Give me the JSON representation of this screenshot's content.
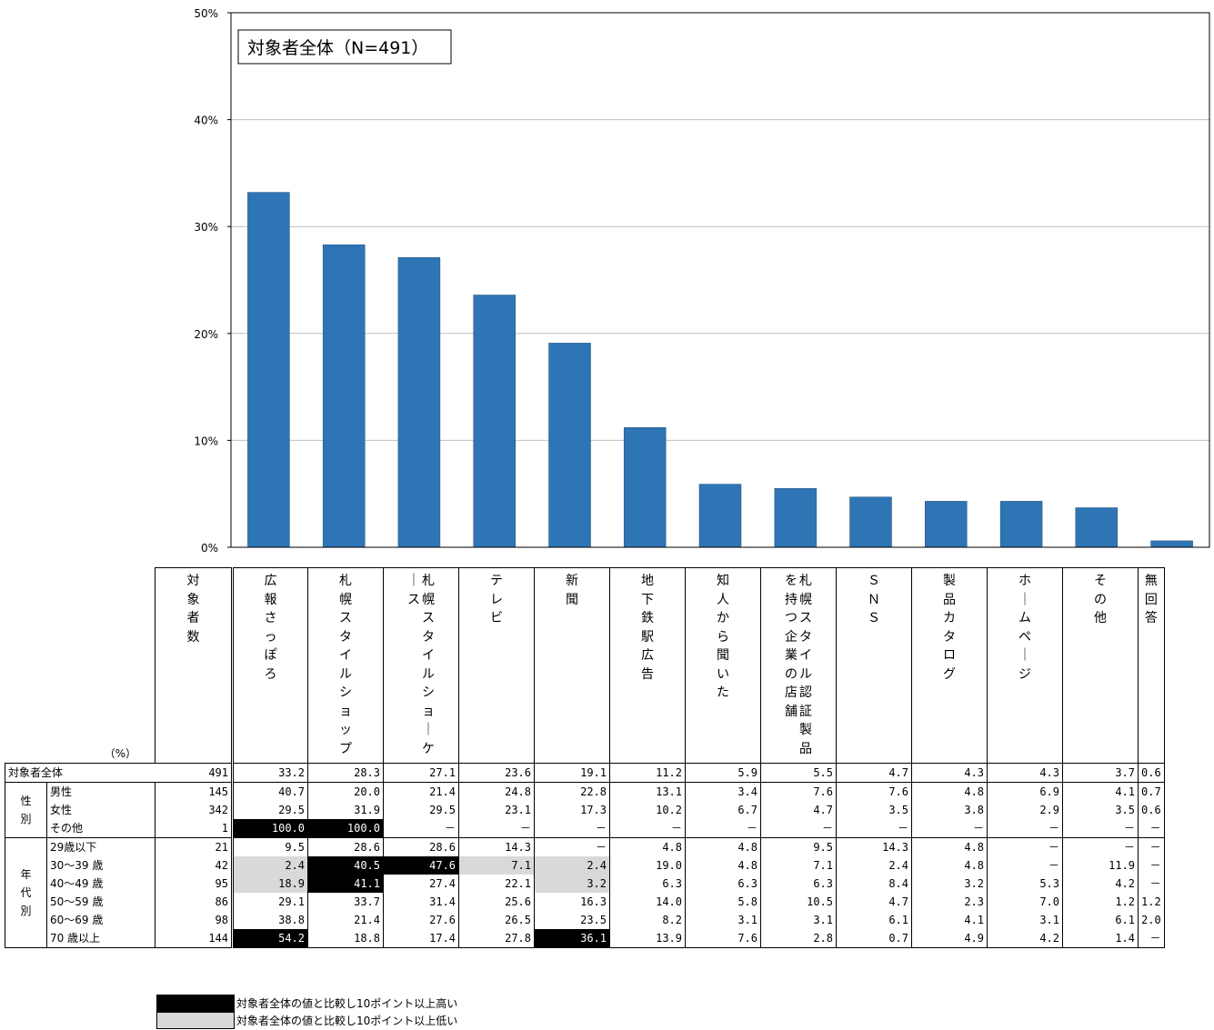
{
  "chart_data": {
    "type": "bar",
    "title": "対象者全体（N=491）",
    "ylim": [
      0,
      50
    ],
    "yticks": [
      "0%",
      "10%",
      "20%",
      "30%",
      "40%",
      "50%"
    ],
    "categories": [
      "広報さっぽろ",
      "札幌スタイルショップ",
      "札幌スタイルショーケース",
      "テレビ",
      "新聞",
      "地下鉄駅広告",
      "知人から聞いた",
      "札幌スタイル認証製品を持つ企業の店舗",
      "ＳＮＳ",
      "製品カタログ",
      "ホームページ",
      "その他",
      "無回答"
    ],
    "values": [
      33.2,
      28.3,
      27.1,
      23.6,
      19.1,
      11.2,
      5.9,
      5.5,
      4.7,
      4.3,
      4.3,
      3.7,
      0.6
    ],
    "bar_color": "#2e75b6",
    "grid": true
  },
  "table": {
    "unit": "（%）",
    "count_header": "対象者数",
    "headers": [
      "広報さっぽろ",
      "札幌スタイルショップ",
      "札幌スタイルショーケース",
      "テレビ",
      "新聞",
      "地下鉄駅広告",
      "知人から聞いた",
      "札幌スタイル認証製品を持つ企業の店舗",
      "ＳＮＳ",
      "製品カタログ",
      "ホームページ",
      "その他",
      "無回答"
    ],
    "total_label": "対象者全体",
    "group_gender": "性別",
    "group_age": "年代別",
    "rows": [
      {
        "label": "対象者全体",
        "n": "491",
        "values": [
          "33.2",
          "28.3",
          "27.1",
          "23.6",
          "19.1",
          "11.2",
          "5.9",
          "5.5",
          "4.7",
          "4.3",
          "4.3",
          "3.7",
          "0.6"
        ],
        "marks": "............."
      },
      {
        "label": "男性",
        "n": "145",
        "values": [
          "40.7",
          "20.0",
          "21.4",
          "24.8",
          "22.8",
          "13.1",
          "3.4",
          "7.6",
          "7.6",
          "4.8",
          "6.9",
          "4.1",
          "0.7"
        ],
        "marks": "............."
      },
      {
        "label": "女性",
        "n": "342",
        "values": [
          "29.5",
          "31.9",
          "29.5",
          "23.1",
          "17.3",
          "10.2",
          "6.7",
          "4.7",
          "3.5",
          "3.8",
          "2.9",
          "3.5",
          "0.6"
        ],
        "marks": "............."
      },
      {
        "label": "その他",
        "n": "1",
        "values": [
          "100.0",
          "100.0",
          "－",
          "－",
          "－",
          "－",
          "－",
          "－",
          "－",
          "－",
          "－",
          "－",
          "－"
        ],
        "marks": "HH..........."
      },
      {
        "label": "29歳以下",
        "n": "21",
        "values": [
          "9.5",
          "28.6",
          "28.6",
          "14.3",
          "－",
          "4.8",
          "4.8",
          "9.5",
          "14.3",
          "4.8",
          "－",
          "－",
          "－"
        ],
        "marks": "............."
      },
      {
        "label": "30～39 歳",
        "n": "42",
        "values": [
          "2.4",
          "40.5",
          "47.6",
          "7.1",
          "2.4",
          "19.0",
          "4.8",
          "7.1",
          "2.4",
          "4.8",
          "－",
          "11.9",
          "－"
        ],
        "marks": "LHHLL........"
      },
      {
        "label": "40～49 歳",
        "n": "95",
        "values": [
          "18.9",
          "41.1",
          "27.4",
          "22.1",
          "3.2",
          "6.3",
          "6.3",
          "6.3",
          "8.4",
          "3.2",
          "5.3",
          "4.2",
          "－"
        ],
        "marks": "LH..L........"
      },
      {
        "label": "50～59 歳",
        "n": "86",
        "values": [
          "29.1",
          "33.7",
          "31.4",
          "25.6",
          "16.3",
          "14.0",
          "5.8",
          "10.5",
          "4.7",
          "2.3",
          "7.0",
          "1.2",
          "1.2"
        ],
        "marks": "............."
      },
      {
        "label": "60～69 歳",
        "n": "98",
        "values": [
          "38.8",
          "21.4",
          "27.6",
          "26.5",
          "23.5",
          "8.2",
          "3.1",
          "3.1",
          "6.1",
          "4.1",
          "3.1",
          "6.1",
          "2.0"
        ],
        "marks": "............."
      },
      {
        "label": "70 歳以上",
        "n": "144",
        "values": [
          "54.2",
          "18.8",
          "17.4",
          "27.8",
          "36.1",
          "13.9",
          "7.6",
          "2.8",
          "0.7",
          "4.9",
          "4.2",
          "1.4",
          "－"
        ],
        "marks": "H...H........"
      }
    ]
  },
  "legend": {
    "high": "対象者全体の値と比較し10ポイント以上高い",
    "low": "対象者全体の値と比較し10ポイント以上低い",
    "high_color": "#000000",
    "low_color": "#d9d9d9"
  }
}
